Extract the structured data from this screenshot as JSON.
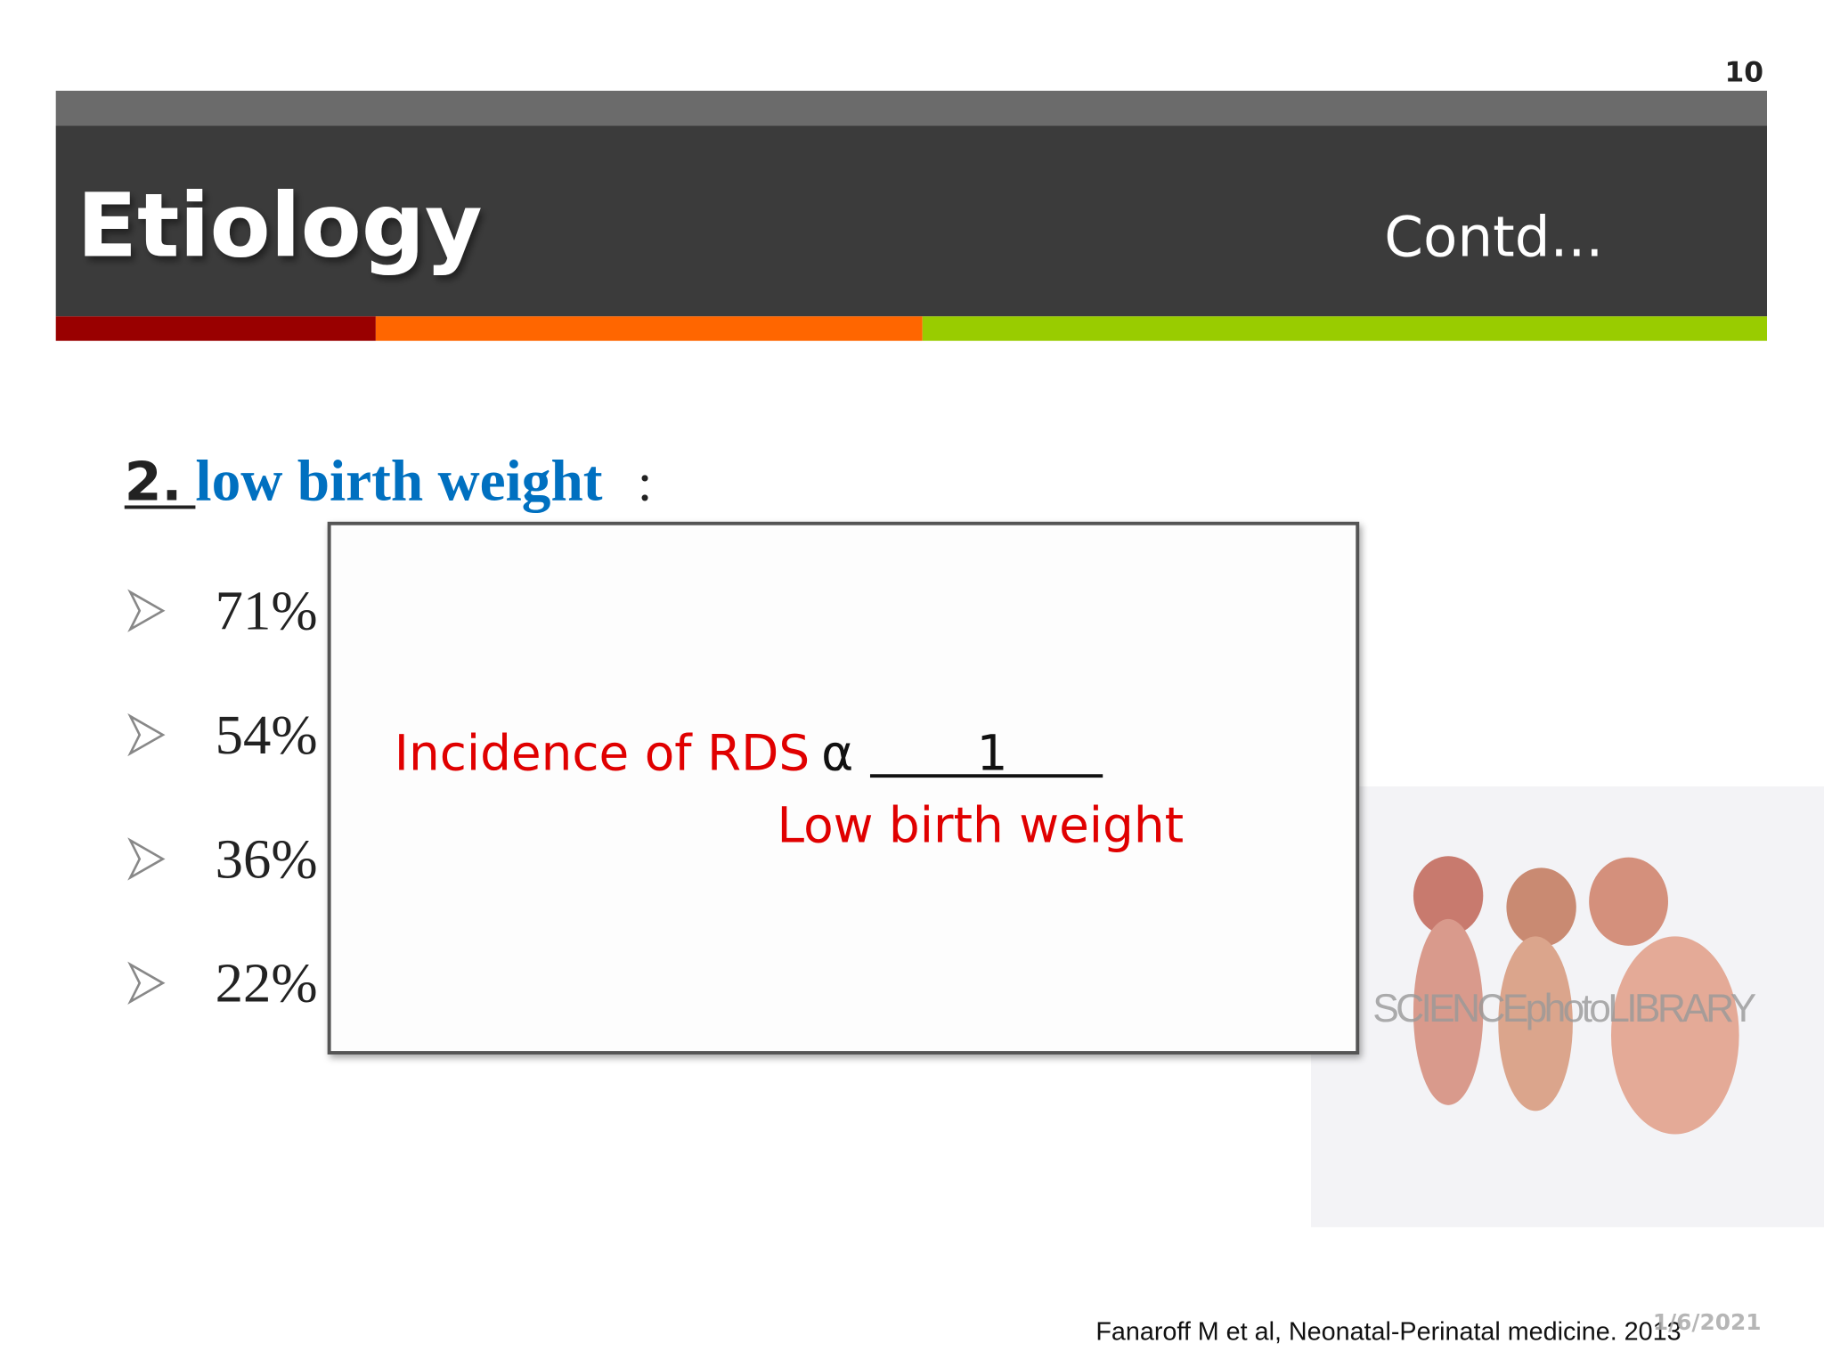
{
  "header": {
    "page_number": "10",
    "title": "Etiology",
    "subtitle": "Contd..."
  },
  "heading": {
    "number": "2.",
    "text": "low birth weight",
    "colon": ":"
  },
  "bullets": [
    "71%",
    "54%",
    "36%",
    "22%"
  ],
  "formula": {
    "label": "Incidence of RDS",
    "symbol": "α",
    "numerator": "1",
    "denominator": "Low birth weight"
  },
  "image": {
    "watermark": "SCIENCEphotoLIBRARY"
  },
  "footer": {
    "citation": "Fanaroff  M et al, Neonatal-Perinatal medicine. 2013",
    "date": "1/6/2021"
  }
}
